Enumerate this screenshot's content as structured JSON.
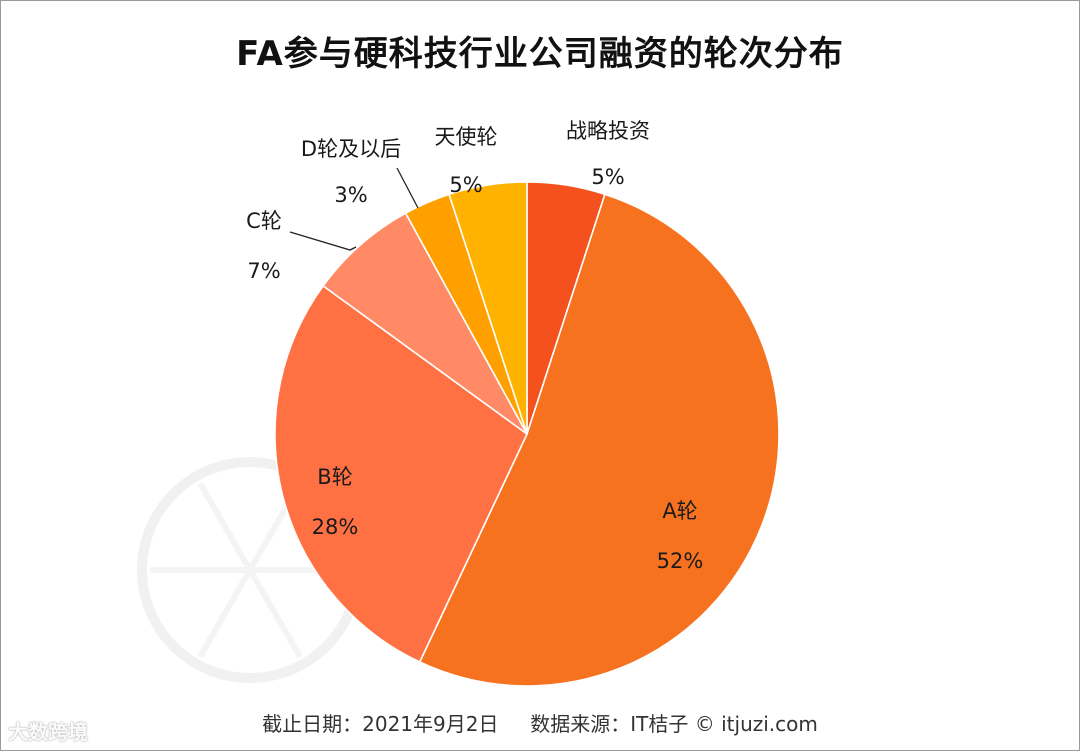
{
  "title": "FA参与硬科技行业公司融资的轮次分布",
  "footer": {
    "date_text": "截止日期：2021年9月2日",
    "source_text": "数据来源：IT桔子 © itjuzi.com"
  },
  "watermark": {
    "badge_text": "大数跨境"
  },
  "colors": {
    "战略投资": "#F4511E",
    "A轮": "#F6721F",
    "B轮": "#FF7043",
    "C轮": "#FF8A65",
    "D轮及以后": "#FFA000",
    "天使轮": "#FFB300"
  },
  "chart_data": {
    "type": "pie",
    "title": "FA参与硬科技行业公司融资的轮次分布",
    "slices": [
      {
        "label": "战略投资",
        "value": 5,
        "value_label": "5%"
      },
      {
        "label": "A轮",
        "value": 52,
        "value_label": "52%"
      },
      {
        "label": "B轮",
        "value": 28,
        "value_label": "28%"
      },
      {
        "label": "C轮",
        "value": 7,
        "value_label": "7%"
      },
      {
        "label": "D轮及以后",
        "value": 3,
        "value_label": "3%"
      },
      {
        "label": "天使轮",
        "value": 5,
        "value_label": "5%"
      }
    ]
  }
}
